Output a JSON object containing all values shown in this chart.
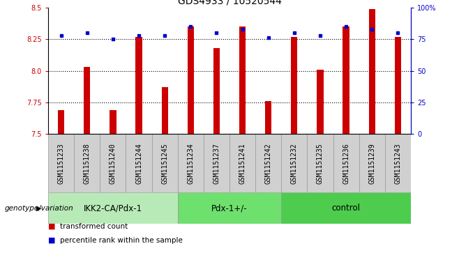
{
  "title": "GDS4933 / 10520544",
  "samples": [
    "GSM1151233",
    "GSM1151238",
    "GSM1151240",
    "GSM1151244",
    "GSM1151245",
    "GSM1151234",
    "GSM1151237",
    "GSM1151241",
    "GSM1151242",
    "GSM1151232",
    "GSM1151235",
    "GSM1151236",
    "GSM1151239",
    "GSM1151243"
  ],
  "red_values": [
    7.69,
    8.03,
    7.69,
    8.27,
    7.87,
    8.35,
    8.18,
    8.35,
    7.76,
    8.27,
    8.01,
    8.35,
    8.49,
    8.27
  ],
  "blue_values": [
    78,
    80,
    75,
    78,
    78,
    85,
    80,
    83,
    76,
    80,
    78,
    85,
    83,
    80
  ],
  "groups": [
    {
      "label": "IKK2-CA/Pdx-1",
      "start": 0,
      "end": 5,
      "color": "#b8eab8"
    },
    {
      "label": "Pdx-1+/-",
      "start": 5,
      "end": 9,
      "color": "#6de06d"
    },
    {
      "label": "control",
      "start": 9,
      "end": 14,
      "color": "#4dcc4d"
    }
  ],
  "ylim_left": [
    7.5,
    8.5
  ],
  "ylim_right": [
    0,
    100
  ],
  "yticks_left": [
    7.5,
    7.75,
    8.0,
    8.25,
    8.5
  ],
  "yticks_right": [
    0,
    25,
    50,
    75,
    100
  ],
  "bar_color": "#cc0000",
  "point_color": "#0000cc",
  "bar_width": 0.25,
  "bar_bottom": 7.5,
  "title_fontsize": 10,
  "tick_fontsize": 7,
  "label_fontsize": 7.5,
  "group_label_fontsize": 8.5,
  "genotype_label": "genotype/variation",
  "legend_items": [
    {
      "label": "transformed count",
      "color": "#cc0000"
    },
    {
      "label": "percentile rank within the sample",
      "color": "#0000cc"
    }
  ],
  "grid_lines": [
    7.75,
    8.0,
    8.25
  ],
  "sample_box_color": "#d0d0d0",
  "sample_box_edge": "#999999"
}
